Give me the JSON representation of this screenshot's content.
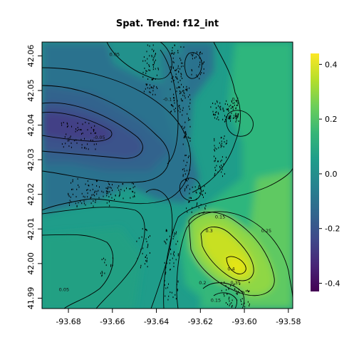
{
  "chart_data": {
    "type": "heatmap",
    "title": "Spat. Trend: f12_int",
    "xlabel": "",
    "ylabel": "",
    "xlim": [
      -93.692,
      -93.578
    ],
    "ylim": [
      41.987,
      42.064
    ],
    "x_ticks": [
      -93.68,
      -93.66,
      -93.64,
      -93.62,
      -93.6,
      -93.58
    ],
    "x_tick_labels": [
      "-93.68",
      "-93.66",
      "-93.64",
      "-93.62",
      "-93.60",
      "-93.58"
    ],
    "y_ticks": [
      41.99,
      42.0,
      42.01,
      42.02,
      42.03,
      42.04,
      42.05,
      42.06
    ],
    "y_tick_labels": [
      "41.99",
      "42.00",
      "42.01",
      "42.02",
      "42.03",
      "42.04",
      "42.05",
      "42.06"
    ],
    "colorbar": {
      "range": [
        -0.43,
        0.44
      ],
      "ticks": [
        -0.4,
        -0.2,
        0.0,
        0.2,
        0.4
      ],
      "tick_labels": [
        "-0.4",
        "-0.2",
        "0.0",
        "0.2",
        "0.4"
      ],
      "colors": [
        "#440154",
        "#482677",
        "#3f4a8a",
        "#31678e",
        "#26838f",
        "#1f9d8a",
        "#36b677",
        "#6cce59",
        "#b5de2b",
        "#fde725"
      ]
    },
    "contour_labels": [
      {
        "x": -93.635,
        "y": 42.047,
        "label": "-0.1"
      },
      {
        "x": -93.659,
        "y": 42.06,
        "label": "0.05"
      },
      {
        "x": -93.666,
        "y": 42.036,
        "label": "-0.05"
      },
      {
        "x": -93.604,
        "y": 42.047,
        "label": "0.1"
      },
      {
        "x": -93.605,
        "y": 42.042,
        "label": "0.15"
      },
      {
        "x": -93.611,
        "y": 42.013,
        "label": "0.15"
      },
      {
        "x": -93.616,
        "y": 42.009,
        "label": "0.3"
      },
      {
        "x": -93.59,
        "y": 42.009,
        "label": "0.25"
      },
      {
        "x": -93.606,
        "y": 41.998,
        "label": "0.4"
      },
      {
        "x": -93.604,
        "y": 41.994,
        "label": "0.35"
      },
      {
        "x": -93.619,
        "y": 41.994,
        "label": "0.2"
      },
      {
        "x": -93.613,
        "y": 41.989,
        "label": "0.15"
      },
      {
        "x": -93.682,
        "y": 41.992,
        "label": "0.05"
      }
    ],
    "points_shown": true
  }
}
